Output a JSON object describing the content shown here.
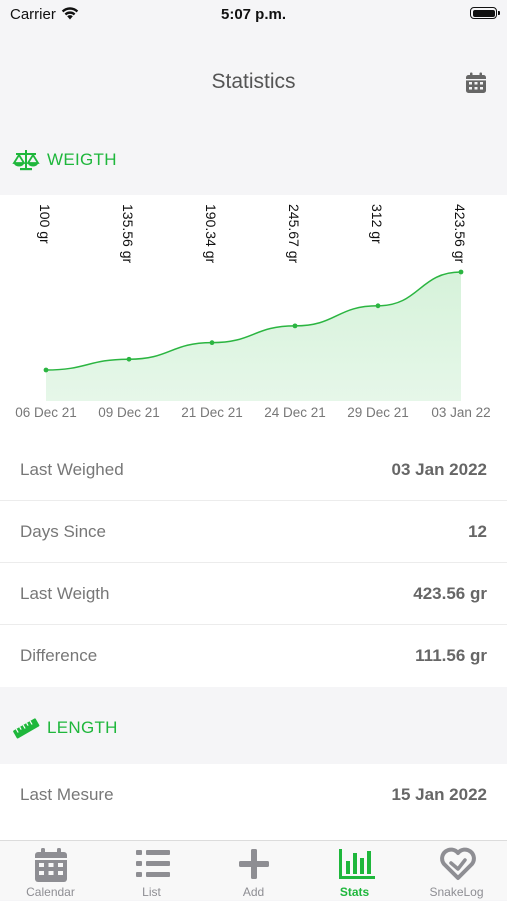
{
  "status_bar": {
    "carrier": "Carrier",
    "time": "5:07 p.m."
  },
  "nav": {
    "title": "Statistics",
    "calendar_icon": "calendar-icon"
  },
  "weight_section": {
    "label": "WEIGTH",
    "icon": "scale-icon"
  },
  "length_section": {
    "label": "LENGTH",
    "icon": "ruler-icon"
  },
  "chart_data": {
    "type": "area",
    "title": "",
    "x": [
      "06 Dec 21",
      "09 Dec 21",
      "21 Dec 21",
      "24 Dec 21",
      "29 Dec 21",
      "03 Jan 22"
    ],
    "values": [
      100,
      135.56,
      190.34,
      245.67,
      312,
      423.56
    ],
    "data_labels": [
      "100 gr",
      "135.56 gr",
      "190.34 gr",
      "245.67 gr",
      "312 gr",
      "423.56 gr"
    ],
    "unit": "gr",
    "grid": false,
    "legend": "none",
    "line_color": "#2bb541",
    "fill_color": "#dff5e2"
  },
  "weight_rows": [
    {
      "label": "Last Weighed",
      "value": "03 Jan 2022"
    },
    {
      "label": "Days Since",
      "value": "12"
    },
    {
      "label": "Last Weigth",
      "value": "423.56 gr"
    },
    {
      "label": "Difference",
      "value": "111.56 gr"
    }
  ],
  "length_rows": [
    {
      "label": "Last Mesure",
      "value": "15 Jan 2022"
    }
  ],
  "tabs": [
    {
      "label": "Calendar",
      "icon": "calendar-icon",
      "active": false
    },
    {
      "label": "List",
      "icon": "list-icon",
      "active": false
    },
    {
      "label": "Add",
      "icon": "plus-icon",
      "active": false
    },
    {
      "label": "Stats",
      "icon": "bar-chart-icon",
      "active": true
    },
    {
      "label": "SnakeLog",
      "icon": "snakelog-heart-icon",
      "active": false
    }
  ],
  "colors": {
    "accent": "#1fb73c",
    "background": "#f5f5f7",
    "tab_inactive": "#8e8e93"
  }
}
